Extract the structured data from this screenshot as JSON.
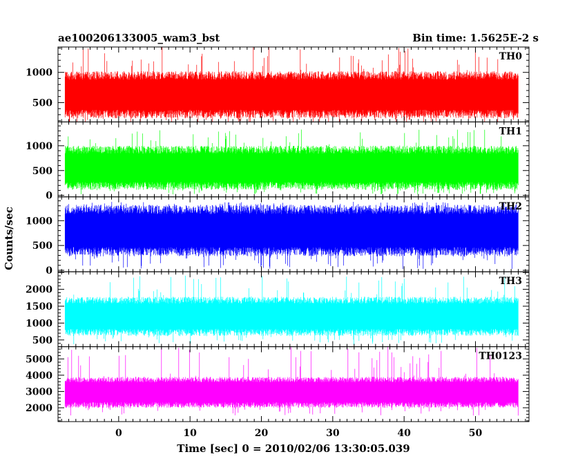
{
  "header": {
    "left": "ae100206133005_wam3_bst",
    "right": "Bin time: 1.5625E-2 s"
  },
  "chart_data": {
    "type": "line",
    "xlabel": "Time [sec] 0 = 2010/02/06 13:30:05.039",
    "ylabel": "Counts/sec",
    "xlim": [
      -8.5,
      57.5
    ],
    "xticks": [
      0,
      10,
      20,
      30,
      40,
      50
    ],
    "xtick_labels": [
      "0",
      "10",
      "20",
      "30",
      "40",
      "50"
    ],
    "data_x_range": [
      -7.5,
      56
    ],
    "bin_time_s": 0.015625,
    "grid": false,
    "panels": [
      {
        "name": "TH0",
        "color": "#ff0000",
        "ylim": [
          180,
          1420
        ],
        "yticks": [
          500,
          1000
        ],
        "ytick_labels": [
          "500",
          "1000"
        ],
        "typical_min": 240,
        "typical_max": 1020,
        "spike_min": 150,
        "spike_max": 1420
      },
      {
        "name": "TH1",
        "color": "#00ff00",
        "ylim": [
          -30,
          1480
        ],
        "yticks": [
          0,
          500,
          1000
        ],
        "ytick_labels": [
          "0",
          "500",
          "1000"
        ],
        "typical_min": 110,
        "typical_max": 1000,
        "spike_min": 20,
        "spike_max": 1330
      },
      {
        "name": "TH2",
        "color": "#0000ff",
        "ylim": [
          -30,
          1480
        ],
        "yticks": [
          0,
          500,
          1000
        ],
        "ytick_labels": [
          "0",
          "500",
          "1000"
        ],
        "typical_min": 280,
        "typical_max": 1320,
        "spike_min": 20,
        "spike_max": 1380
      },
      {
        "name": "TH3",
        "color": "#00ffff",
        "ylim": [
          300,
          2520
        ],
        "yticks": [
          500,
          1000,
          1500,
          2000
        ],
        "ytick_labels": [
          "500",
          "1000",
          "1500",
          "2000"
        ],
        "typical_min": 620,
        "typical_max": 1780,
        "spike_min": 340,
        "spike_max": 2420
      },
      {
        "name": "TH0123",
        "color": "#ff00ff",
        "ylim": [
          1150,
          5750
        ],
        "yticks": [
          2000,
          3000,
          4000,
          5000
        ],
        "ytick_labels": [
          "2000",
          "3000",
          "4000",
          "5000"
        ],
        "typical_min": 2000,
        "typical_max": 3900,
        "spike_min": 1500,
        "spike_max": 5750
      }
    ]
  }
}
